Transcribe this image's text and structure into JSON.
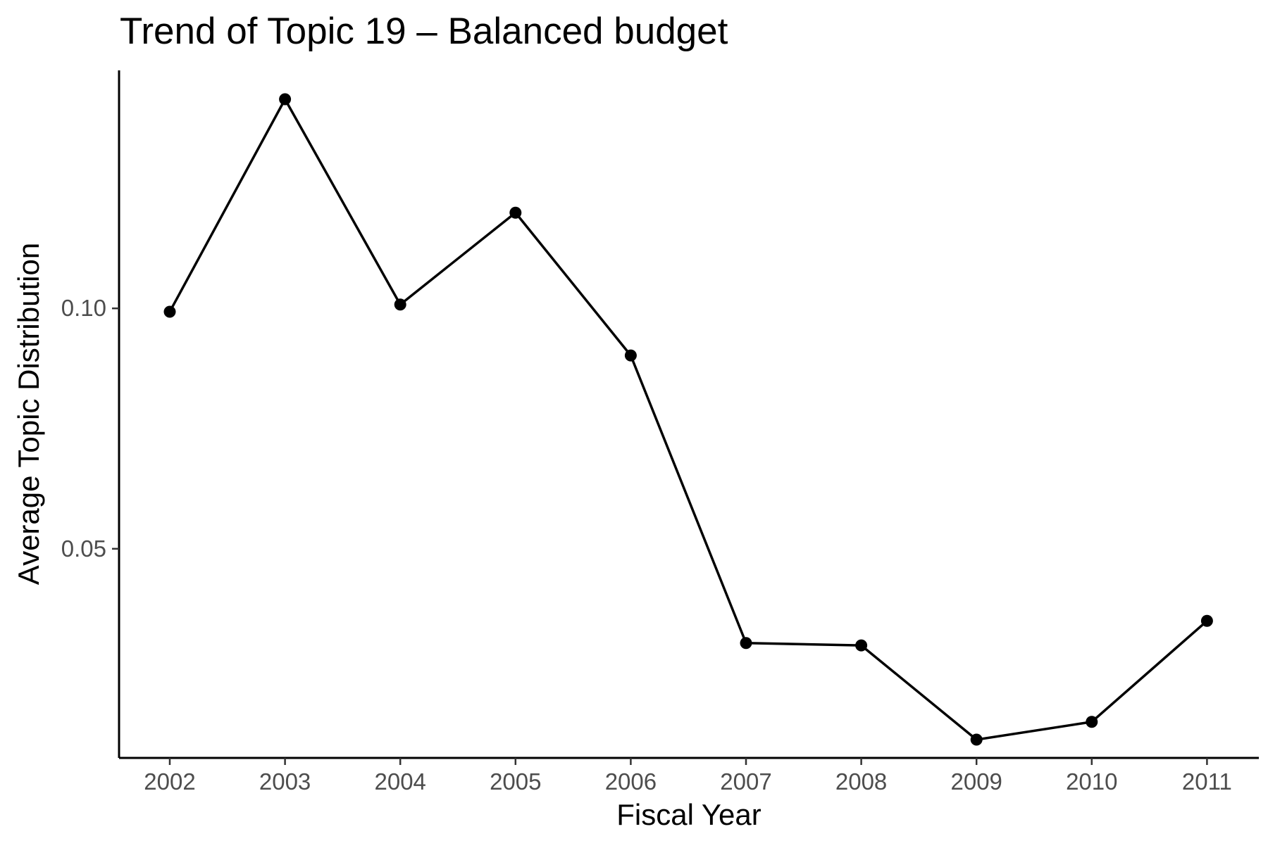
{
  "chart_data": {
    "type": "line",
    "title": "Trend of Topic 19 – Balanced budget",
    "xlabel": "Fiscal Year",
    "ylabel": "Average Topic Distribution",
    "categories": [
      "2002",
      "2003",
      "2004",
      "2005",
      "2006",
      "2007",
      "2008",
      "2009",
      "2010",
      "2011"
    ],
    "series": [
      {
        "values": [
          0.0993,
          0.1435,
          0.1008,
          0.1199,
          0.0902,
          0.0304,
          0.0299,
          0.0103,
          0.014,
          0.035
        ]
      }
    ],
    "y_ticks": [
      0.05,
      0.1
    ],
    "y_tick_labels": [
      "0.05",
      "0.10"
    ],
    "ylim": [
      0.0065,
      0.1495
    ],
    "grid": false,
    "colors": {
      "series": "#000000",
      "axis": "#000000",
      "tick_label": "#4d4d4d"
    }
  }
}
